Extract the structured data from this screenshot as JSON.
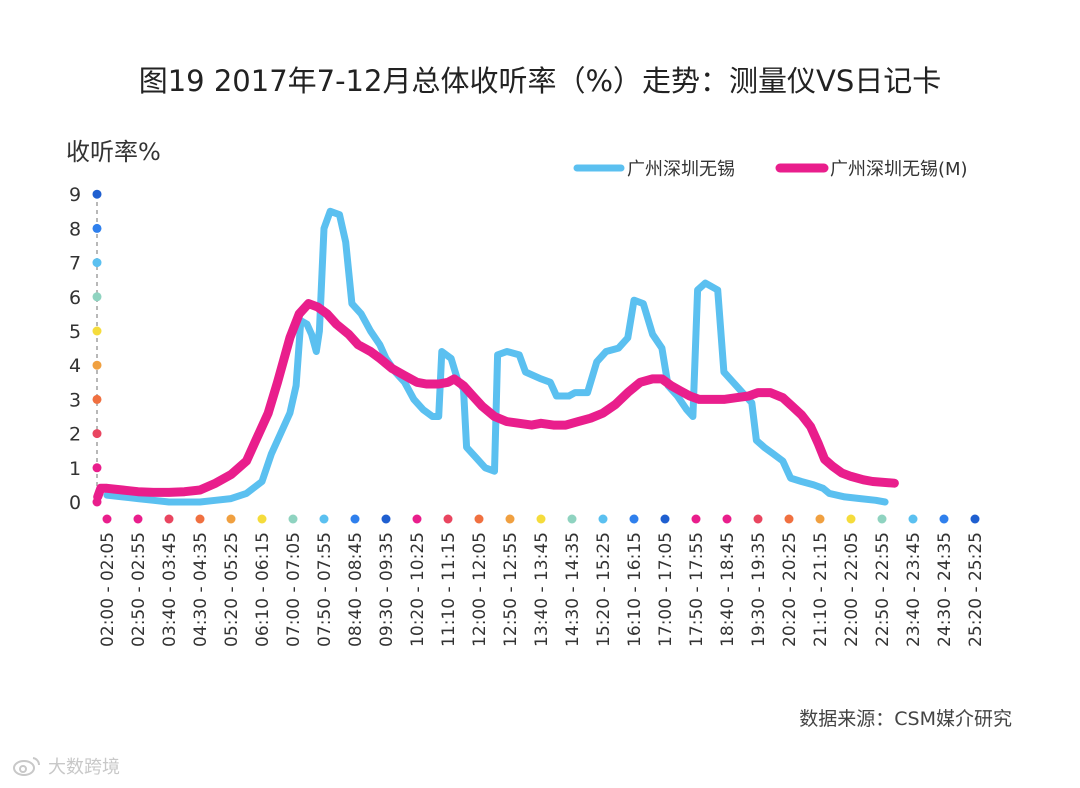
{
  "title": "图19 2017年7-12月总体收听率（%）走势：测量仪VS日记卡",
  "source": "数据来源：CSM媒介研究",
  "watermark": "大数跨境",
  "chart_data": {
    "type": "line",
    "ylabel": "收听率%",
    "xlabel": "",
    "ylim": [
      0,
      9
    ],
    "yticks": [
      0,
      1,
      2,
      3,
      4,
      5,
      6,
      7,
      8,
      9
    ],
    "legend": "top-right",
    "grid": false,
    "categories": [
      "02:00 - 02:05",
      "02:50 - 02:55",
      "03:40 - 03:45",
      "04:30 - 04:35",
      "05:20 - 05:25",
      "06:10 - 06:15",
      "07:00 - 07:05",
      "07:50 - 07:55",
      "08:40 - 08:45",
      "09:30 - 09:35",
      "10:20 - 10:25",
      "11:10 - 11:15",
      "12:00 - 12:05",
      "12:50 - 12:55",
      "13:40 - 13:45",
      "14:30 - 14:35",
      "15:20 - 15:25",
      "16:10 - 16:15",
      "17:00 - 17:05",
      "17:50 - 17:55",
      "18:40 - 18:45",
      "19:30 - 19:35",
      "20:20 - 20:25",
      "21:10 - 21:15",
      "22:00 - 22:05",
      "22:50 - 22:55",
      "23:40 - 23:45",
      "24:30 - 24:35",
      "25:20 - 25:25"
    ],
    "series": [
      {
        "name": "广州深圳无锡",
        "color": "#5bc0f0",
        "points": [
          [
            0,
            0.2
          ],
          [
            0.5,
            0.15
          ],
          [
            1,
            0.1
          ],
          [
            1.5,
            0.05
          ],
          [
            2,
            0.0
          ],
          [
            2.5,
            0.0
          ],
          [
            3,
            0.0
          ],
          [
            3.5,
            0.05
          ],
          [
            4,
            0.1
          ],
          [
            4.5,
            0.25
          ],
          [
            5,
            0.6
          ],
          [
            5.3,
            1.4
          ],
          [
            5.6,
            2.0
          ],
          [
            5.9,
            2.6
          ],
          [
            6.1,
            3.4
          ],
          [
            6.25,
            5.3
          ],
          [
            6.45,
            5.2
          ],
          [
            6.6,
            4.9
          ],
          [
            6.75,
            4.4
          ],
          [
            6.85,
            5.0
          ],
          [
            7.0,
            8.0
          ],
          [
            7.2,
            8.5
          ],
          [
            7.5,
            8.4
          ],
          [
            7.7,
            7.6
          ],
          [
            7.9,
            5.8
          ],
          [
            8.2,
            5.5
          ],
          [
            8.5,
            5.0
          ],
          [
            8.8,
            4.6
          ],
          [
            9.0,
            4.2
          ],
          [
            9.3,
            3.8
          ],
          [
            9.6,
            3.5
          ],
          [
            9.9,
            3.0
          ],
          [
            10.2,
            2.7
          ],
          [
            10.5,
            2.5
          ],
          [
            10.7,
            2.5
          ],
          [
            10.8,
            4.4
          ],
          [
            11.1,
            4.2
          ],
          [
            11.3,
            3.6
          ],
          [
            11.5,
            3.3
          ],
          [
            11.6,
            1.6
          ],
          [
            11.9,
            1.3
          ],
          [
            12.2,
            1.0
          ],
          [
            12.5,
            0.9
          ],
          [
            12.6,
            4.3
          ],
          [
            12.9,
            4.4
          ],
          [
            13.3,
            4.3
          ],
          [
            13.5,
            3.8
          ],
          [
            14.0,
            3.6
          ],
          [
            14.3,
            3.5
          ],
          [
            14.5,
            3.1
          ],
          [
            14.9,
            3.1
          ],
          [
            15.1,
            3.2
          ],
          [
            15.5,
            3.2
          ],
          [
            15.8,
            4.1
          ],
          [
            16.1,
            4.4
          ],
          [
            16.5,
            4.5
          ],
          [
            16.8,
            4.8
          ],
          [
            17.0,
            5.9
          ],
          [
            17.3,
            5.8
          ],
          [
            17.6,
            4.9
          ],
          [
            17.9,
            4.5
          ],
          [
            18.1,
            3.4
          ],
          [
            18.4,
            3.1
          ],
          [
            18.7,
            2.7
          ],
          [
            18.9,
            2.5
          ],
          [
            19.05,
            6.2
          ],
          [
            19.3,
            6.4
          ],
          [
            19.7,
            6.2
          ],
          [
            19.9,
            3.8
          ],
          [
            20.2,
            3.5
          ],
          [
            20.5,
            3.2
          ],
          [
            20.8,
            2.9
          ],
          [
            20.95,
            1.8
          ],
          [
            21.2,
            1.6
          ],
          [
            21.5,
            1.4
          ],
          [
            21.8,
            1.2
          ],
          [
            22.05,
            0.7
          ],
          [
            22.4,
            0.6
          ],
          [
            22.8,
            0.5
          ],
          [
            23.1,
            0.4
          ],
          [
            23.3,
            0.25
          ],
          [
            23.8,
            0.15
          ],
          [
            24.3,
            0.1
          ],
          [
            24.8,
            0.05
          ],
          [
            25.1,
            0.0
          ]
        ]
      },
      {
        "name": "广州深圳无锡(M)",
        "color": "#e91e8c",
        "points": [
          [
            -0.3,
            0.15
          ],
          [
            -0.2,
            0.4
          ],
          [
            0,
            0.4
          ],
          [
            0.5,
            0.35
          ],
          [
            1,
            0.3
          ],
          [
            1.5,
            0.28
          ],
          [
            2,
            0.28
          ],
          [
            2.5,
            0.3
          ],
          [
            3,
            0.35
          ],
          [
            3.5,
            0.55
          ],
          [
            4,
            0.8
          ],
          [
            4.5,
            1.2
          ],
          [
            4.8,
            1.8
          ],
          [
            5.2,
            2.6
          ],
          [
            5.5,
            3.5
          ],
          [
            5.9,
            4.8
          ],
          [
            6.2,
            5.5
          ],
          [
            6.5,
            5.8
          ],
          [
            6.8,
            5.7
          ],
          [
            7.1,
            5.5
          ],
          [
            7.4,
            5.2
          ],
          [
            7.8,
            4.9
          ],
          [
            8.1,
            4.6
          ],
          [
            8.5,
            4.4
          ],
          [
            8.8,
            4.2
          ],
          [
            9.2,
            3.9
          ],
          [
            9.6,
            3.7
          ],
          [
            10.0,
            3.5
          ],
          [
            10.3,
            3.45
          ],
          [
            10.7,
            3.45
          ],
          [
            11.0,
            3.5
          ],
          [
            11.2,
            3.6
          ],
          [
            11.5,
            3.4
          ],
          [
            11.8,
            3.1
          ],
          [
            12.1,
            2.8
          ],
          [
            12.5,
            2.5
          ],
          [
            12.9,
            2.35
          ],
          [
            13.3,
            2.3
          ],
          [
            13.7,
            2.25
          ],
          [
            14.0,
            2.3
          ],
          [
            14.4,
            2.25
          ],
          [
            14.8,
            2.25
          ],
          [
            15.2,
            2.35
          ],
          [
            15.6,
            2.45
          ],
          [
            16.0,
            2.6
          ],
          [
            16.4,
            2.85
          ],
          [
            16.8,
            3.2
          ],
          [
            17.2,
            3.5
          ],
          [
            17.6,
            3.6
          ],
          [
            17.9,
            3.6
          ],
          [
            18.2,
            3.4
          ],
          [
            18.5,
            3.25
          ],
          [
            18.8,
            3.1
          ],
          [
            19.1,
            3.0
          ],
          [
            19.5,
            3.0
          ],
          [
            19.9,
            3.0
          ],
          [
            20.3,
            3.05
          ],
          [
            20.7,
            3.1
          ],
          [
            21.0,
            3.2
          ],
          [
            21.4,
            3.2
          ],
          [
            21.8,
            3.05
          ],
          [
            22.1,
            2.8
          ],
          [
            22.4,
            2.55
          ],
          [
            22.7,
            2.2
          ],
          [
            22.95,
            1.7
          ],
          [
            23.15,
            1.25
          ],
          [
            23.4,
            1.05
          ],
          [
            23.7,
            0.85
          ],
          [
            24.0,
            0.75
          ],
          [
            24.4,
            0.65
          ],
          [
            24.7,
            0.6
          ],
          [
            25.4,
            0.55
          ]
        ]
      }
    ]
  }
}
